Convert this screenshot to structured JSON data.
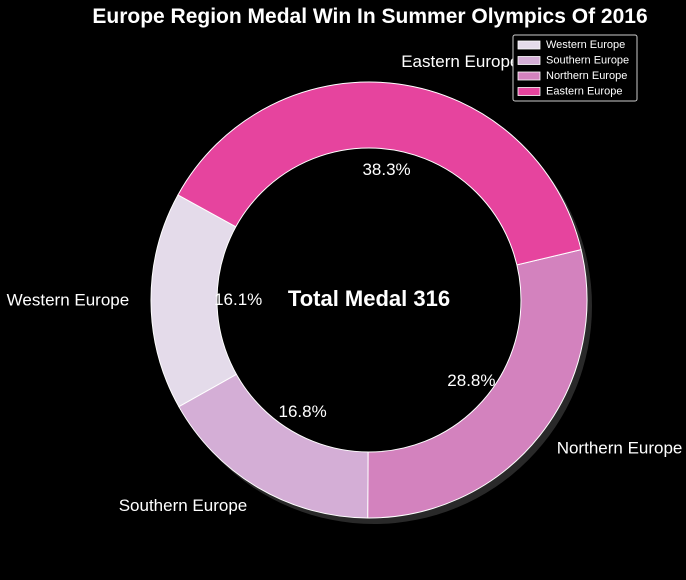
{
  "chart_data": {
    "type": "pie",
    "title": "Europe Region Medal Win In Summer Olympics Of 2016",
    "center_text": "Total Medal 316",
    "categories": [
      "Western Europe",
      "Southern Europe",
      "Northern Europe",
      "Eastern Europe"
    ],
    "values": [
      51,
      53,
      91,
      121
    ],
    "percent_labels": [
      "16.1%",
      "16.8%",
      "28.8%",
      "38.3%"
    ],
    "colors": [
      "#e4dbea",
      "#d4aed6",
      "#d382be",
      "#e6449e"
    ],
    "legend": {
      "position": "top-right",
      "entries": [
        "Western Europe",
        "Southern Europe",
        "Northern Europe",
        "Eastern Europe"
      ]
    },
    "donut": true,
    "shadow": true
  }
}
